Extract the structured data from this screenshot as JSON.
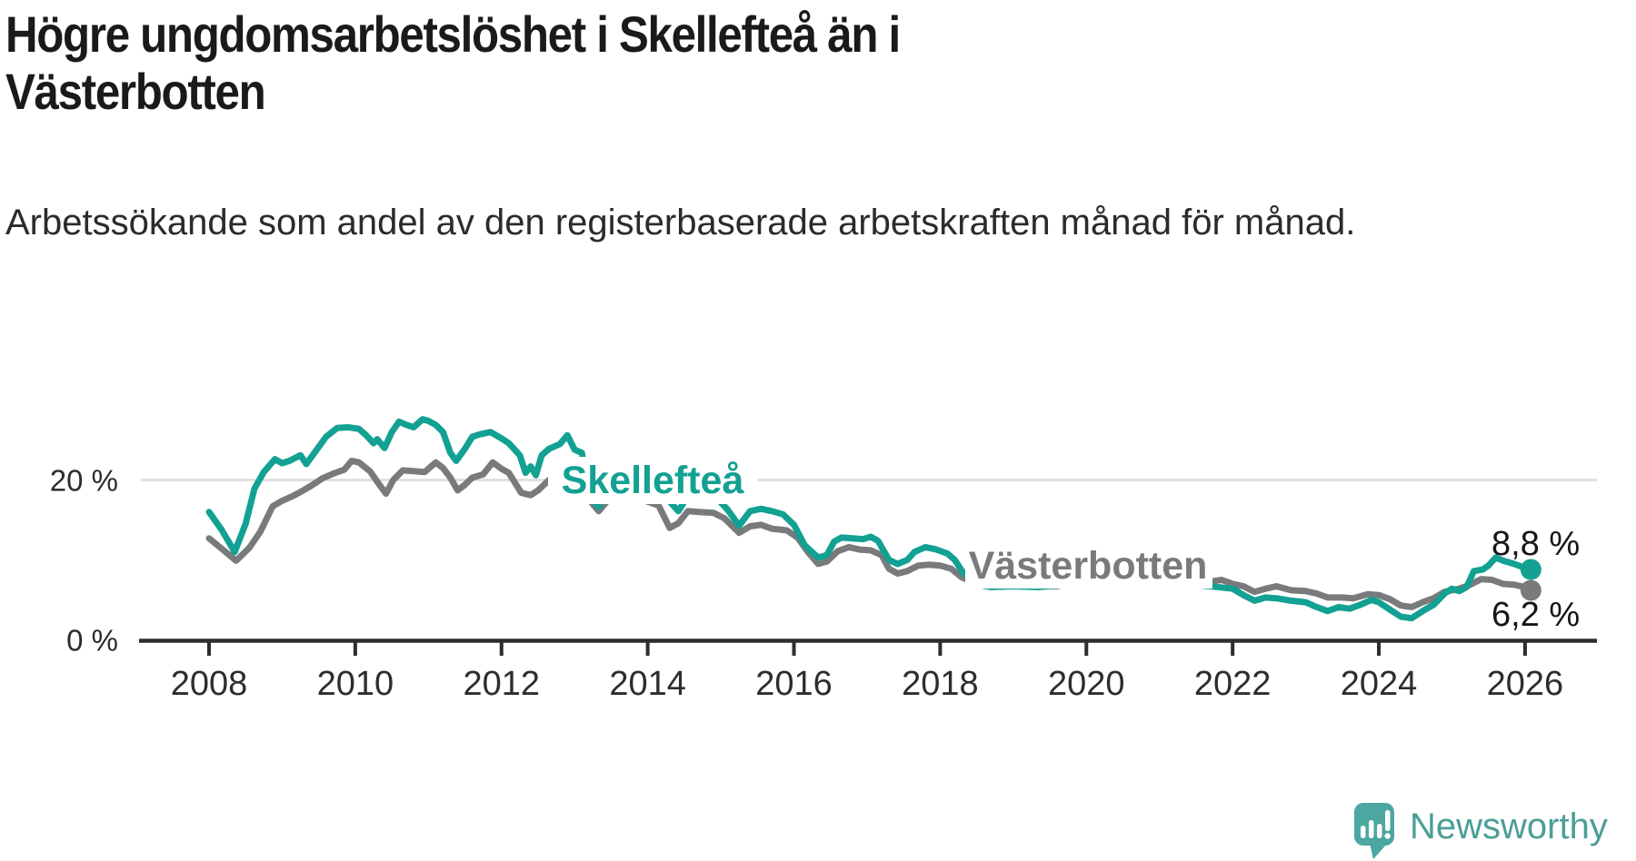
{
  "title": "Högre ungdomsarbetslöshet i Skellefteå än i Västerbotten",
  "subtitle": "Arbetssökande som andel av den registerbaserade arbetskraften månad för månad.",
  "branding": {
    "logo_text": "Newsworthy",
    "logo_color": "#4ba7a0",
    "logo_text_color": "#4b9e97"
  },
  "colors": {
    "skelleftea": "#12a192",
    "vasterbotten": "#797a7c",
    "axis": "#2e2e2e",
    "gridline": "#dbdbdb",
    "value_label": "#161616"
  },
  "chart_data": {
    "type": "line",
    "title": "Högre ungdomsarbetslöshet i Skellefteå än i Västerbotten",
    "subtitle": "Arbetssökande som andel av den registerbaserade arbetskraften månad för månad.",
    "unit": "%",
    "x_range_years": [
      2008,
      2026.1
    ],
    "ylim": [
      0,
      30
    ],
    "grid": "single-line-at-20",
    "legend_position": "inline-labels-on-lines",
    "x_ticks": [
      2008,
      2010,
      2012,
      2014,
      2016,
      2018,
      2020,
      2022,
      2024,
      2026
    ],
    "y_ticks": [
      {
        "value": 0,
        "label": "0 %",
        "gridline": false
      },
      {
        "value": 20,
        "label": "20 %",
        "gridline": true
      }
    ],
    "series": [
      {
        "name": "Skellefteå",
        "color": "#12a192",
        "end_label": "8,8 %",
        "end_value": 8.8,
        "points": [
          [
            2008.0,
            16.0
          ],
          [
            2008.17,
            13.8
          ],
          [
            2008.35,
            11.0
          ],
          [
            2008.5,
            14.5
          ],
          [
            2008.62,
            18.9
          ],
          [
            2008.75,
            21.0
          ],
          [
            2008.9,
            22.6
          ],
          [
            2009.0,
            22.1
          ],
          [
            2009.1,
            22.4
          ],
          [
            2009.25,
            23.1
          ],
          [
            2009.33,
            22.0
          ],
          [
            2009.45,
            23.5
          ],
          [
            2009.6,
            25.4
          ],
          [
            2009.75,
            26.5
          ],
          [
            2009.9,
            26.6
          ],
          [
            2010.05,
            26.4
          ],
          [
            2010.15,
            25.6
          ],
          [
            2010.25,
            24.6
          ],
          [
            2010.3,
            25.1
          ],
          [
            2010.4,
            24.0
          ],
          [
            2010.5,
            26.0
          ],
          [
            2010.6,
            27.3
          ],
          [
            2010.7,
            26.9
          ],
          [
            2010.8,
            26.6
          ],
          [
            2010.92,
            27.6
          ],
          [
            2011.0,
            27.4
          ],
          [
            2011.1,
            26.9
          ],
          [
            2011.2,
            26.0
          ],
          [
            2011.3,
            23.4
          ],
          [
            2011.38,
            22.4
          ],
          [
            2011.5,
            23.9
          ],
          [
            2011.6,
            25.4
          ],
          [
            2011.7,
            25.7
          ],
          [
            2011.85,
            26.0
          ],
          [
            2012.0,
            25.2
          ],
          [
            2012.1,
            24.6
          ],
          [
            2012.25,
            23.1
          ],
          [
            2012.33,
            20.9
          ],
          [
            2012.4,
            21.7
          ],
          [
            2012.47,
            20.6
          ],
          [
            2012.55,
            23.1
          ],
          [
            2012.65,
            23.9
          ],
          [
            2012.8,
            24.5
          ],
          [
            2012.9,
            25.6
          ],
          [
            2013.0,
            23.8
          ],
          [
            2013.1,
            23.4
          ],
          [
            2013.2,
            18.0
          ],
          [
            2013.33,
            16.6
          ],
          [
            2013.45,
            19.0
          ],
          [
            2013.6,
            20.8
          ],
          [
            2013.75,
            20.4
          ],
          [
            2013.9,
            19.6
          ],
          [
            2014.05,
            18.8
          ],
          [
            2014.2,
            17.8
          ],
          [
            2014.3,
            17.3
          ],
          [
            2014.42,
            16.1
          ],
          [
            2014.55,
            18.0
          ],
          [
            2014.7,
            18.4
          ],
          [
            2014.85,
            18.2
          ],
          [
            2015.0,
            17.2
          ],
          [
            2015.1,
            16.2
          ],
          [
            2015.25,
            14.3
          ],
          [
            2015.4,
            16.1
          ],
          [
            2015.55,
            16.4
          ],
          [
            2015.7,
            16.1
          ],
          [
            2015.85,
            15.7
          ],
          [
            2016.0,
            14.4
          ],
          [
            2016.15,
            11.8
          ],
          [
            2016.33,
            10.3
          ],
          [
            2016.45,
            10.6
          ],
          [
            2016.55,
            12.3
          ],
          [
            2016.65,
            12.8
          ],
          [
            2016.8,
            12.7
          ],
          [
            2016.95,
            12.6
          ],
          [
            2017.05,
            12.9
          ],
          [
            2017.15,
            12.4
          ],
          [
            2017.3,
            10.0
          ],
          [
            2017.42,
            9.5
          ],
          [
            2017.55,
            10.0
          ],
          [
            2017.65,
            11.0
          ],
          [
            2017.8,
            11.6
          ],
          [
            2017.95,
            11.3
          ],
          [
            2018.1,
            10.8
          ],
          [
            2018.2,
            10.0
          ],
          [
            2018.3,
            8.6
          ],
          [
            2018.45,
            7.0
          ],
          [
            2018.7,
            6.6
          ],
          [
            2019.0,
            6.7
          ],
          [
            2019.35,
            6.6
          ],
          [
            2019.7,
            6.9
          ],
          [
            2020.1,
            7.9
          ],
          [
            2020.5,
            7.7
          ],
          [
            2020.9,
            7.3
          ],
          [
            2021.3,
            7.0
          ],
          [
            2021.7,
            6.7
          ],
          [
            2021.9,
            6.5
          ],
          [
            2022.0,
            6.4
          ],
          [
            2022.15,
            5.6
          ],
          [
            2022.3,
            4.9
          ],
          [
            2022.45,
            5.3
          ],
          [
            2022.6,
            5.2
          ],
          [
            2022.8,
            4.9
          ],
          [
            2023.0,
            4.7
          ],
          [
            2023.15,
            4.1
          ],
          [
            2023.3,
            3.6
          ],
          [
            2023.45,
            4.1
          ],
          [
            2023.6,
            3.9
          ],
          [
            2023.75,
            4.4
          ],
          [
            2023.9,
            5.0
          ],
          [
            2024.0,
            4.7
          ],
          [
            2024.15,
            3.8
          ],
          [
            2024.3,
            2.9
          ],
          [
            2024.45,
            2.7
          ],
          [
            2024.6,
            3.6
          ],
          [
            2024.75,
            4.4
          ],
          [
            2024.9,
            5.8
          ],
          [
            2025.0,
            6.4
          ],
          [
            2025.1,
            6.1
          ],
          [
            2025.2,
            6.6
          ],
          [
            2025.3,
            8.6
          ],
          [
            2025.42,
            8.8
          ],
          [
            2025.5,
            9.3
          ],
          [
            2025.6,
            10.3
          ],
          [
            2025.7,
            9.9
          ],
          [
            2025.85,
            9.5
          ],
          [
            2026.0,
            9.0
          ],
          [
            2026.08,
            8.8
          ]
        ]
      },
      {
        "name": "Västerbotten",
        "color": "#797a7c",
        "end_label": "6,2 %",
        "end_value": 6.2,
        "points": [
          [
            2008.0,
            12.7
          ],
          [
            2008.2,
            11.2
          ],
          [
            2008.37,
            9.9
          ],
          [
            2008.55,
            11.5
          ],
          [
            2008.7,
            13.5
          ],
          [
            2008.87,
            16.7
          ],
          [
            2009.0,
            17.4
          ],
          [
            2009.15,
            18.0
          ],
          [
            2009.25,
            18.5
          ],
          [
            2009.4,
            19.3
          ],
          [
            2009.55,
            20.2
          ],
          [
            2009.7,
            20.8
          ],
          [
            2009.85,
            21.3
          ],
          [
            2009.95,
            22.4
          ],
          [
            2010.05,
            22.2
          ],
          [
            2010.2,
            21.1
          ],
          [
            2010.3,
            19.8
          ],
          [
            2010.42,
            18.3
          ],
          [
            2010.52,
            20.0
          ],
          [
            2010.65,
            21.2
          ],
          [
            2010.8,
            21.1
          ],
          [
            2010.95,
            21.0
          ],
          [
            2011.1,
            22.2
          ],
          [
            2011.2,
            21.5
          ],
          [
            2011.3,
            20.3
          ],
          [
            2011.4,
            18.7
          ],
          [
            2011.5,
            19.4
          ],
          [
            2011.6,
            20.3
          ],
          [
            2011.75,
            20.7
          ],
          [
            2011.88,
            22.2
          ],
          [
            2012.0,
            21.4
          ],
          [
            2012.1,
            20.9
          ],
          [
            2012.27,
            18.4
          ],
          [
            2012.4,
            18.1
          ],
          [
            2012.5,
            18.7
          ],
          [
            2012.65,
            20.0
          ],
          [
            2012.8,
            20.5
          ],
          [
            2012.95,
            20.4
          ],
          [
            2013.1,
            19.5
          ],
          [
            2013.2,
            17.5
          ],
          [
            2013.33,
            16.1
          ],
          [
            2013.45,
            17.4
          ],
          [
            2013.6,
            18.4
          ],
          [
            2013.8,
            17.8
          ],
          [
            2014.0,
            17.3
          ],
          [
            2014.15,
            16.8
          ],
          [
            2014.3,
            14.0
          ],
          [
            2014.42,
            14.6
          ],
          [
            2014.55,
            16.1
          ],
          [
            2014.7,
            16.0
          ],
          [
            2014.9,
            15.9
          ],
          [
            2015.05,
            15.2
          ],
          [
            2015.25,
            13.4
          ],
          [
            2015.4,
            14.2
          ],
          [
            2015.55,
            14.4
          ],
          [
            2015.7,
            13.9
          ],
          [
            2015.9,
            13.7
          ],
          [
            2016.05,
            12.8
          ],
          [
            2016.2,
            10.9
          ],
          [
            2016.33,
            9.5
          ],
          [
            2016.45,
            9.8
          ],
          [
            2016.6,
            11.1
          ],
          [
            2016.75,
            11.6
          ],
          [
            2016.9,
            11.3
          ],
          [
            2017.05,
            11.2
          ],
          [
            2017.2,
            10.6
          ],
          [
            2017.3,
            8.9
          ],
          [
            2017.42,
            8.3
          ],
          [
            2017.55,
            8.6
          ],
          [
            2017.7,
            9.3
          ],
          [
            2017.85,
            9.4
          ],
          [
            2018.0,
            9.3
          ],
          [
            2018.15,
            8.9
          ],
          [
            2018.3,
            7.8
          ],
          [
            2018.5,
            7.1
          ],
          [
            2018.8,
            6.9
          ],
          [
            2019.2,
            6.8
          ],
          [
            2019.6,
            6.7
          ],
          [
            2020.1,
            7.7
          ],
          [
            2020.5,
            7.4
          ],
          [
            2021.0,
            7.1
          ],
          [
            2021.4,
            7.2
          ],
          [
            2021.7,
            7.3
          ],
          [
            2021.85,
            7.5
          ],
          [
            2022.0,
            7.0
          ],
          [
            2022.15,
            6.7
          ],
          [
            2022.3,
            6.0
          ],
          [
            2022.45,
            6.4
          ],
          [
            2022.6,
            6.7
          ],
          [
            2022.8,
            6.2
          ],
          [
            2023.0,
            6.1
          ],
          [
            2023.15,
            5.8
          ],
          [
            2023.3,
            5.3
          ],
          [
            2023.5,
            5.3
          ],
          [
            2023.65,
            5.2
          ],
          [
            2023.85,
            5.7
          ],
          [
            2024.0,
            5.6
          ],
          [
            2024.15,
            5.1
          ],
          [
            2024.3,
            4.3
          ],
          [
            2024.45,
            4.1
          ],
          [
            2024.6,
            4.7
          ],
          [
            2024.75,
            5.2
          ],
          [
            2024.9,
            6.0
          ],
          [
            2025.1,
            6.4
          ],
          [
            2025.25,
            6.9
          ],
          [
            2025.4,
            7.6
          ],
          [
            2025.55,
            7.5
          ],
          [
            2025.7,
            7.0
          ],
          [
            2025.85,
            6.9
          ],
          [
            2026.0,
            6.6
          ],
          [
            2026.08,
            6.2
          ]
        ]
      }
    ]
  }
}
